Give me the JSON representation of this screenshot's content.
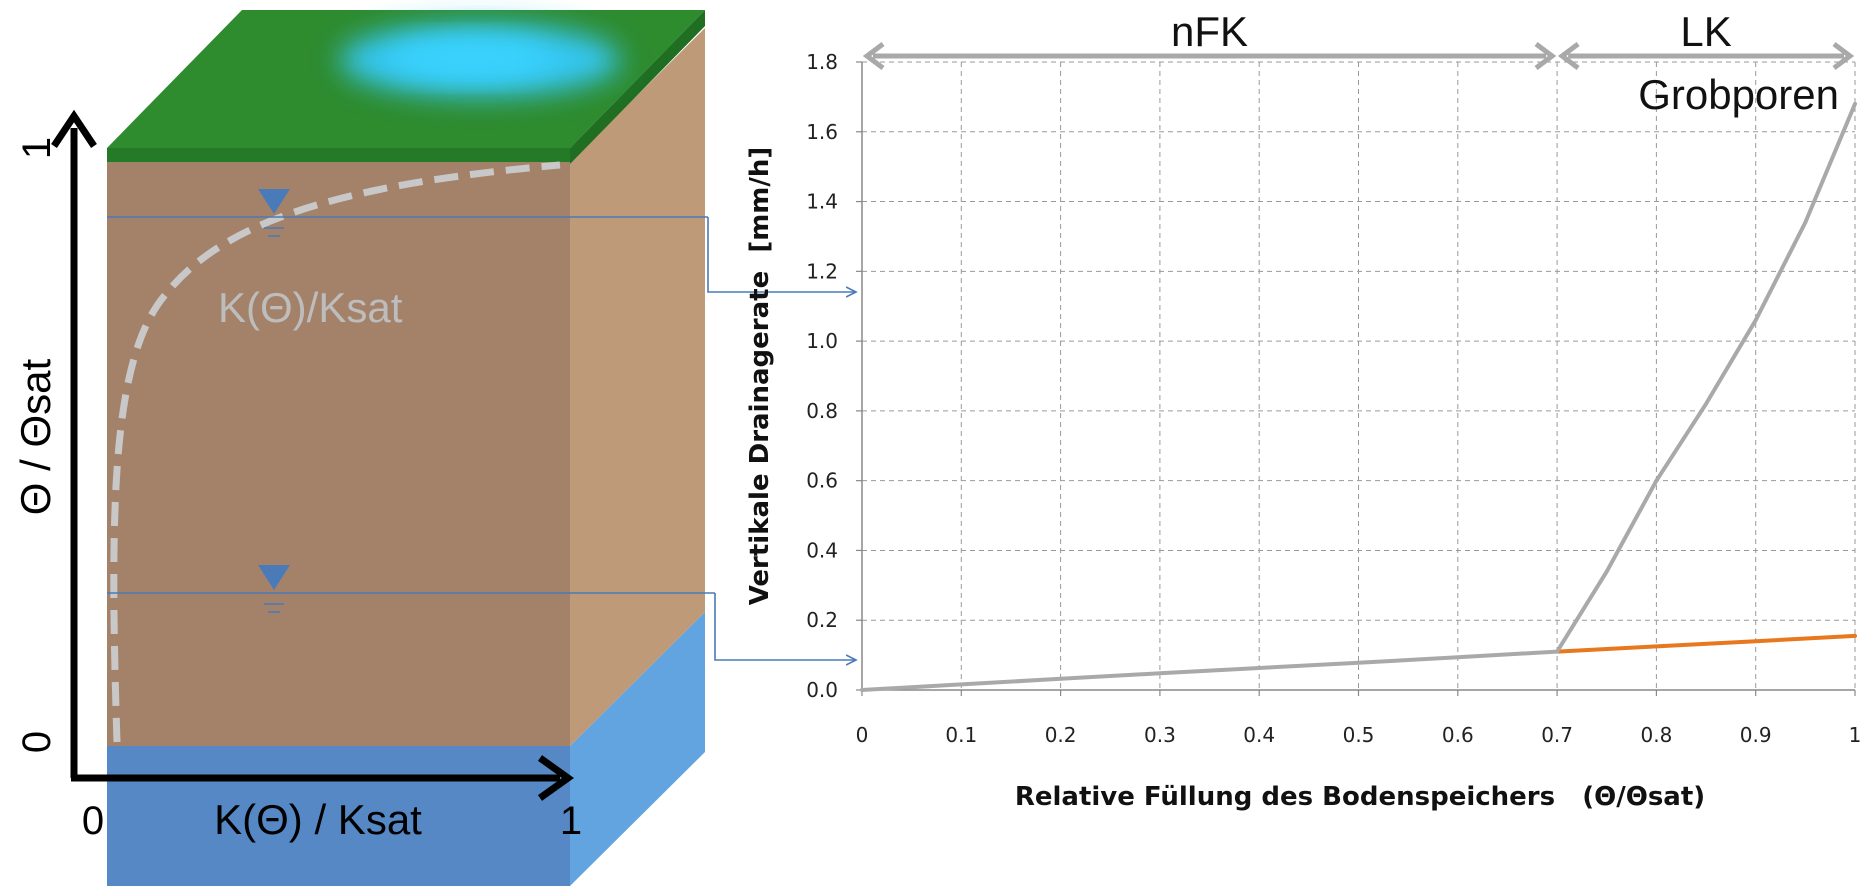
{
  "soil_figure": {
    "y_axis_label": "Θ / Θsat",
    "y_tick_low": "0",
    "y_tick_high": "1",
    "x_axis_label": "K(Θ) / Ksat",
    "x_tick_low": "0",
    "x_tick_high": "1",
    "curve_label": "K(Θ)/Ksat",
    "colors": {
      "grass": "#2e8b2e",
      "water_patch": "#34c8f4",
      "soil_front": "#a4826a",
      "soil_side": "#bf9a78",
      "groundwater_front": "#5588c4",
      "groundwater_side": "#62a4e0",
      "level_line": "#4a7ab8",
      "curve": "#bdbdbd"
    }
  },
  "chart_data": {
    "type": "line",
    "xlabel": "Relative Füllung des Bodenspeichers   (Θ/Θsat)",
    "ylabel": "Vertikale Drainagerate  [mm/h]",
    "xlim": [
      0,
      1
    ],
    "ylim": [
      0,
      1.8
    ],
    "x_ticks": [
      "0",
      "0.1",
      "0.2",
      "0.3",
      "0.4",
      "0.5",
      "0.6",
      "0.7",
      "0.8",
      "0.9",
      "1"
    ],
    "y_ticks": [
      "0.0",
      "0.2",
      "0.4",
      "0.6",
      "0.8",
      "1.0",
      "1.2",
      "1.4",
      "1.6",
      "1.8"
    ],
    "grid": true,
    "series": [
      {
        "color": "#a9a9a9",
        "x": [
          0,
          0.1,
          0.2,
          0.3,
          0.4,
          0.5,
          0.6,
          0.7,
          0.75,
          0.8,
          0.85,
          0.9,
          0.95,
          1.0
        ],
        "y": [
          0,
          0.016,
          0.032,
          0.048,
          0.063,
          0.078,
          0.094,
          0.11,
          0.34,
          0.6,
          0.82,
          1.06,
          1.34,
          1.68
        ]
      },
      {
        "color": "#e8781e",
        "x": [
          0.7,
          0.8,
          0.9,
          1.0
        ],
        "y": [
          0.11,
          0.125,
          0.14,
          0.155
        ]
      }
    ],
    "regions": [
      {
        "label": "nFK",
        "from": 0,
        "to": 0.7
      },
      {
        "label": "LK",
        "sublabel": "Grobporen",
        "from": 0.7,
        "to": 1.0
      }
    ]
  }
}
